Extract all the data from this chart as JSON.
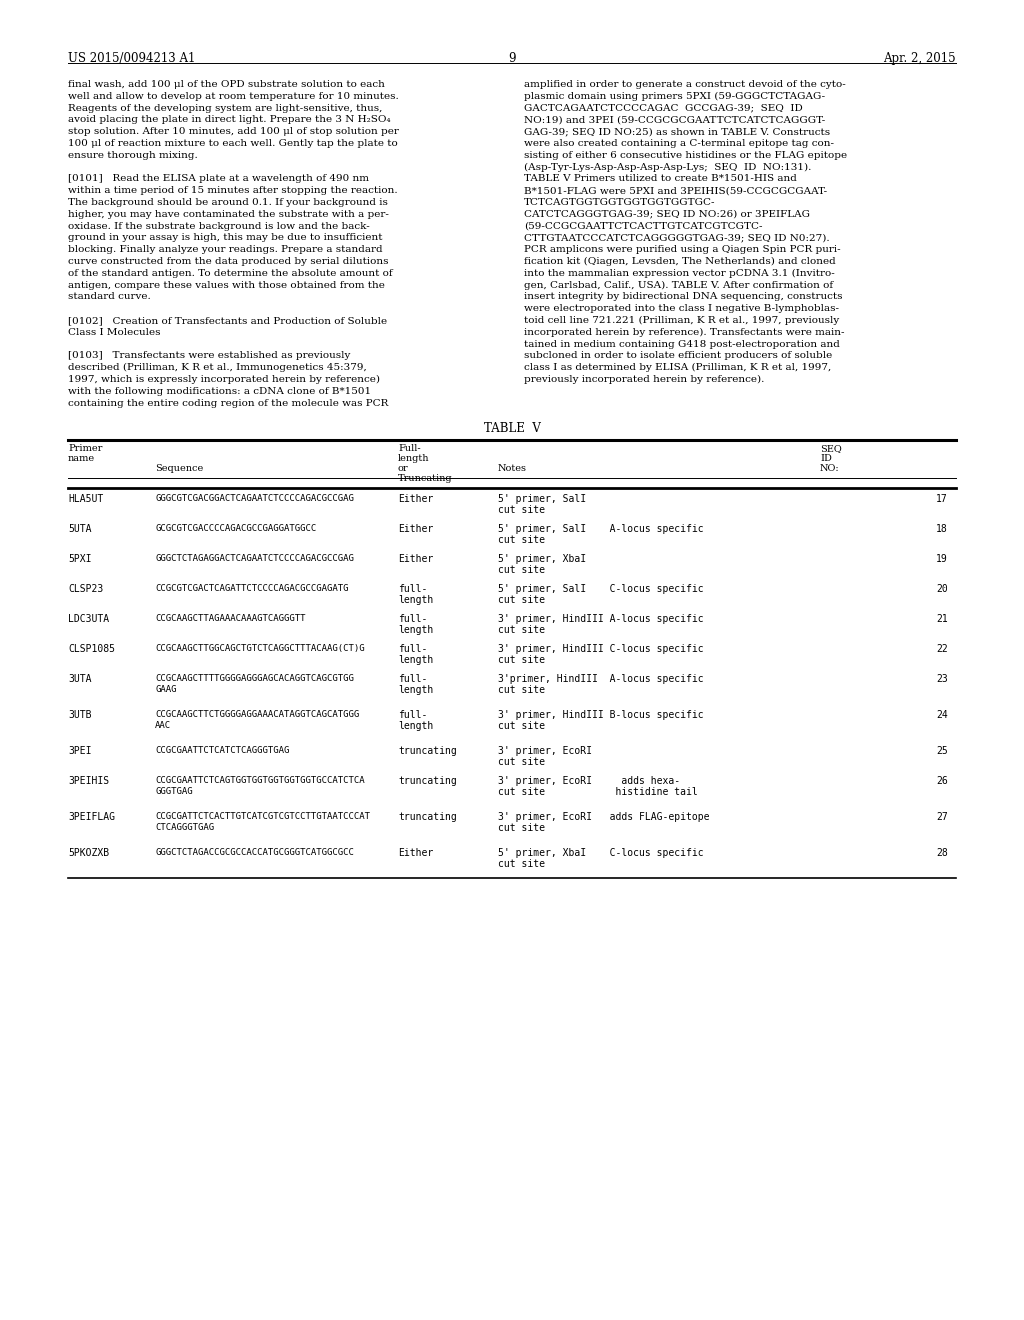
{
  "page_number": "9",
  "patent_number": "US 2015/0094213 A1",
  "date": "Apr. 2, 2015",
  "background_color": "#ffffff",
  "text_color": "#000000",
  "left_column_text": [
    "final wash, add 100 μl of the OPD substrate solution to each",
    "well and allow to develop at room temperature for 10 minutes.",
    "Reagents of the developing system are light-sensitive, thus,",
    "avoid placing the plate in direct light. Prepare the 3 N H₂SO₄",
    "stop solution. After 10 minutes, add 100 μl of stop solution per",
    "100 μl of reaction mixture to each well. Gently tap the plate to",
    "ensure thorough mixing.",
    "",
    "[0101]   Read the ELISA plate at a wavelength of 490 nm",
    "within a time period of 15 minutes after stopping the reaction.",
    "The background should be around 0.1. If your background is",
    "higher, you may have contaminated the substrate with a per-",
    "oxidase. If the substrate background is low and the back-",
    "ground in your assay is high, this may be due to insufficient",
    "blocking. Finally analyze your readings. Prepare a standard",
    "curve constructed from the data produced by serial dilutions",
    "of the standard antigen. To determine the absolute amount of",
    "antigen, compare these values with those obtained from the",
    "standard curve.",
    "",
    "[0102]   Creation of Transfectants and Production of Soluble",
    "Class I Molecules",
    "",
    "[0103]   Transfectants were established as previously",
    "described (Prilliman, K R et al., Immunogenetics 45:379,",
    "1997, which is expressly incorporated herein by reference)",
    "with the following modifications: a cDNA clone of B*1501",
    "containing the entire coding region of the molecule was PCR"
  ],
  "right_column_text": [
    "amplified in order to generate a construct devoid of the cyto-",
    "plasmic domain using primers 5PXI (59-GGGCTCTAGAG-",
    "GACTCAGAATCTCCCCAGAC  GCCGAG-39;  SEQ  ID",
    "NO:19) and 3PEI (59-CCGCGCGAATTCTCATCTCAGGGT-",
    "GAG-39; SEQ ID NO:25) as shown in TABLE V. Constructs",
    "were also created containing a C-terminal epitope tag con-",
    "sisting of either 6 consecutive histidines or the FLAG epitope",
    "(Asp-Tyr-Lys-Asp-Asp-Asp-Asp-Lys;  SEQ  ID  NO:131).",
    "TABLE V Primers utilized to create B*1501-HIS and",
    "B*1501-FLAG were 5PXI and 3PEIHIS(59-CCGCGCGAAT-",
    "TCTCAGTGGTGGTGGTGGTGGTGC-",
    "CATCTCAGGGTGAG-39; SEQ ID NO:26) or 3PEIFLAG",
    "(59-CCGCGAATTCTCACTTGTCATCGTCGTC-",
    "CTTGTAATCCCATCTCAGGGGGTGAG-39; SEQ ID N0:27).",
    "PCR amplicons were purified using a Qiagen Spin PCR puri-",
    "fication kit (Qiagen, Levsden, The Netherlands) and cloned",
    "into the mammalian expression vector pCDNA 3.1 (Invitro-",
    "gen, Carlsbad, Calif., USA). TABLE V. After confirmation of",
    "insert integrity by bidirectional DNA sequencing, constructs",
    "were electroporated into the class I negative B-lymphoblas-",
    "toid cell line 721.221 (Prilliman, K R et al., 1997, previously",
    "incorporated herein by reference). Transfectants were main-",
    "tained in medium containing G418 post-electroporation and",
    "subcloned in order to isolate efficient producers of soluble",
    "class I as determined by ELISA (Prilliman, K R et al, 1997,",
    "previously incorporated herein by reference)."
  ],
  "table_title": "TABLE  V",
  "table_rows": [
    {
      "name": "HLA5UT",
      "sequence": "GGGCGTCGACGGACTCAGAATCTCCCCAGACGCCGAG",
      "fulltrunc": "Either",
      "notes1": "5' primer, SalI",
      "notes2": "cut site",
      "notes3": "",
      "seq": "17"
    },
    {
      "name": "5UTA",
      "sequence": "GCGCGTCGACCCCAGACGCCGAGGATGGCC",
      "fulltrunc": "Either",
      "notes1": "5' primer, SalI    A-locus specific",
      "notes2": "cut site",
      "notes3": "",
      "seq": "18"
    },
    {
      "name": "5PXI",
      "sequence": "GGGCTCTAGAGGACTCAGAATCTCCCCAGACGCCGAG",
      "fulltrunc": "Either",
      "notes1": "5' primer, XbaI",
      "notes2": "cut site",
      "notes3": "",
      "seq": "19"
    },
    {
      "name": "CLSP23",
      "sequence": "CCGCGTCGACTCAGATTCTCCCCAGACGCCGAGATG",
      "fulltrunc1": "full-",
      "fulltrunc2": "length",
      "notes1": "5' primer, SalI    C-locus specific",
      "notes2": "cut site",
      "notes3": "",
      "seq": "20"
    },
    {
      "name": "LDC3UTA",
      "sequence": "CCGCAAGCTTAGAAACAAAGTCAGGGTT",
      "fulltrunc1": "full-",
      "fulltrunc2": "length",
      "notes1": "3' primer, HindIII A-locus specific",
      "notes2": "cut site",
      "notes3": "",
      "seq": "21"
    },
    {
      "name": "CLSP1085",
      "sequence": "CCGCAAGCTTGGCAGCTGTCTCAGGCTTTACAAG(CT)G",
      "fulltrunc1": "full-",
      "fulltrunc2": "length",
      "notes1": "3' primer, HindIII C-locus specific",
      "notes2": "cut site",
      "notes3": "",
      "seq": "22"
    },
    {
      "name": "3UTA",
      "sequence1": "CCGCAAGCTTTTGGGGAGGGAGCACAGGTCAGCGTGG",
      "sequence2": "GAAG",
      "fulltrunc1": "full-",
      "fulltrunc2": "length",
      "notes1": "3'primer, HindIII  A-locus specific",
      "notes2": "cut site",
      "notes3": "",
      "seq": "23"
    },
    {
      "name": "3UTB",
      "sequence1": "CCGCAAGCTTCTGGGGAGGAAACATAGGTCAGCATGGG",
      "sequence2": "AAC",
      "fulltrunc1": "full-",
      "fulltrunc2": "length",
      "notes1": "3' primer, HindIII B-locus specific",
      "notes2": "cut site",
      "notes3": "",
      "seq": "24"
    },
    {
      "name": "3PEI",
      "sequence": "CCGCGAATTCTCATCTCAGGGTGAG",
      "fulltrunc": "truncating",
      "notes1": "3' primer, EcoRI",
      "notes2": "cut site",
      "notes3": "",
      "seq": "25"
    },
    {
      "name": "3PEIHIS",
      "sequence1": "CCGCGAATTCTCAGTGGTGGTGGTGGTGGTGCCATCTCA",
      "sequence2": "GGGTGAG",
      "fulltrunc": "truncating",
      "notes1": "3' primer, EcoRI     adds hexa-",
      "notes2": "cut site            histidine tail",
      "notes3": "",
      "seq": "26"
    },
    {
      "name": "3PEIFLAG",
      "sequence1": "CCGCGATTCTCACTTGTCATCGTCGTCCTTGTAATCCCAT",
      "sequence2": "CTCAGGGTGAG",
      "fulltrunc": "truncating",
      "notes1": "3' primer, EcoRI   adds FLAG-epitope",
      "notes2": "cut site",
      "notes3": "",
      "seq": "27"
    },
    {
      "name": "5PKOZXB",
      "sequence": "GGGCTCTAGACCGCGCCACCATGCGGGTCATGGCGCC",
      "fulltrunc": "Either",
      "notes1": "5' primer, XbaI    C-locus specific",
      "notes2": "cut site",
      "notes3": "",
      "seq": "28"
    }
  ]
}
